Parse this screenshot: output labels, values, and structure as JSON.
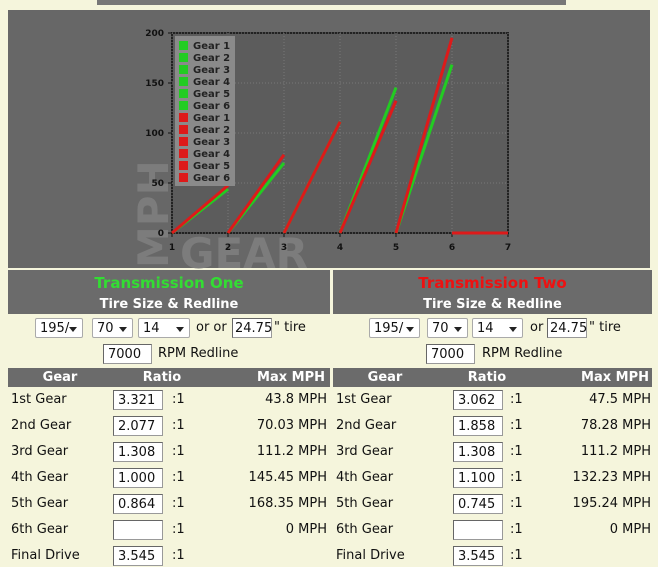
{
  "chart_data": {
    "type": "line",
    "x_label": "GEAR",
    "y_label": "MPH",
    "xlim": [
      1,
      7
    ],
    "xticks": [
      1,
      2,
      3,
      4,
      5,
      6,
      7
    ],
    "ylim": [
      0,
      200
    ],
    "yticks": [
      0,
      50,
      100,
      150,
      200
    ],
    "grid": true,
    "legend": "upper left",
    "series": [
      {
        "name": "Gear 1",
        "color": "#22cc22",
        "x": [
          1,
          2
        ],
        "values": [
          0,
          43.8
        ]
      },
      {
        "name": "Gear 2",
        "color": "#22cc22",
        "x": [
          2,
          3
        ],
        "values": [
          0,
          70.03
        ]
      },
      {
        "name": "Gear 3",
        "color": "#22cc22",
        "x": [
          3,
          4
        ],
        "values": [
          0,
          111.2
        ]
      },
      {
        "name": "Gear 4",
        "color": "#22cc22",
        "x": [
          4,
          5
        ],
        "values": [
          0,
          145.45
        ]
      },
      {
        "name": "Gear 5",
        "color": "#22cc22",
        "x": [
          5,
          6
        ],
        "values": [
          0,
          168.35
        ]
      },
      {
        "name": "Gear 6",
        "color": "#22cc22",
        "x": [
          6,
          7
        ],
        "values": [
          0,
          0
        ]
      },
      {
        "name": "Gear 1",
        "color": "#dd1a1a",
        "x": [
          1,
          2
        ],
        "values": [
          0,
          47.5
        ]
      },
      {
        "name": "Gear 2",
        "color": "#dd1a1a",
        "x": [
          2,
          3
        ],
        "values": [
          0,
          78.28
        ]
      },
      {
        "name": "Gear 3",
        "color": "#dd1a1a",
        "x": [
          3,
          4
        ],
        "values": [
          0,
          111.2
        ]
      },
      {
        "name": "Gear 4",
        "color": "#dd1a1a",
        "x": [
          4,
          5
        ],
        "values": [
          0,
          132.23
        ]
      },
      {
        "name": "Gear 5",
        "color": "#dd1a1a",
        "x": [
          5,
          6
        ],
        "values": [
          0,
          195.24
        ]
      },
      {
        "name": "Gear 6",
        "color": "#dd1a1a",
        "x": [
          6,
          7
        ],
        "values": [
          0,
          0
        ]
      }
    ]
  },
  "transmissions": [
    {
      "title": "Transmission One",
      "title_color": "#33dd33",
      "subtitle": "Tire Size & Redline",
      "tire": {
        "width": "195/",
        "aspect": "70",
        "rim": "14",
        "or": "or or",
        "diameter": "24.75",
        "unit": "\" tire"
      },
      "redline": {
        "rpm": "7000",
        "label": "RPM Redline"
      },
      "table": {
        "header": [
          "Gear",
          "Ratio",
          "Max MPH"
        ],
        "rows": [
          [
            "1st Gear",
            "3.321",
            ":1",
            "43.8 MPH"
          ],
          [
            "2nd Gear",
            "2.077",
            ":1",
            "70.03 MPH"
          ],
          [
            "3rd Gear",
            "1.308",
            ":1",
            "111.2 MPH"
          ],
          [
            "4th Gear",
            "1.000",
            ":1",
            "145.45 MPH"
          ],
          [
            "5th Gear",
            "0.864",
            ":1",
            "168.35 MPH"
          ],
          [
            "6th Gear",
            null,
            ":1",
            "0 MPH"
          ],
          [
            "Final Drive",
            "3.545",
            ":1"
          ]
        ]
      }
    },
    {
      "title": "Transmission Two",
      "title_color": "#ee1111",
      "subtitle": "Tire Size & Redline",
      "tire": {
        "width": "195/",
        "aspect": "70",
        "rim": "14",
        "or": "or",
        "diameter": "24.75",
        "unit": "\" tire"
      },
      "redline": {
        "rpm": "7000",
        "label": "RPM Redline"
      },
      "table": {
        "header": [
          "Gear",
          "Ratio",
          "Max MPH"
        ],
        "rows": [
          [
            "1st Gear",
            "3.062",
            ":1",
            "47.5 MPH"
          ],
          [
            "2nd Gear",
            "1.858",
            ":1",
            "78.28 MPH"
          ],
          [
            "3rd Gear",
            "1.308",
            ":1",
            "111.2 MPH"
          ],
          [
            "4th Gear",
            "1.100",
            ":1",
            "132.23 MPH"
          ],
          [
            "5th Gear",
            "0.745",
            ":1",
            "195.24 MPH"
          ],
          [
            "6th Gear",
            null,
            ":1",
            "0 MPH"
          ],
          [
            "Final Drive",
            "3.545",
            ":1"
          ]
        ]
      }
    }
  ]
}
